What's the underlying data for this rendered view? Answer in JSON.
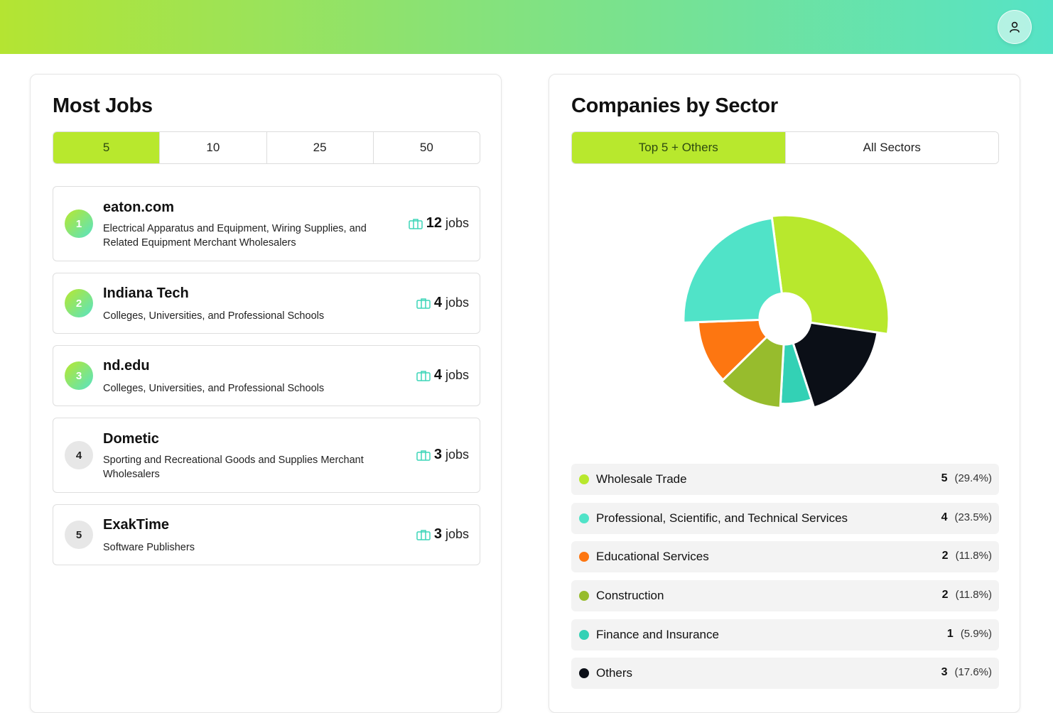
{
  "header": {
    "user_icon": "user-icon"
  },
  "most_jobs": {
    "title": "Most Jobs",
    "tabs": [
      {
        "label": "5",
        "active": true
      },
      {
        "label": "10",
        "active": false
      },
      {
        "label": "25",
        "active": false
      },
      {
        "label": "50",
        "active": false
      }
    ],
    "items": [
      {
        "rank": "1",
        "name": "eaton.com",
        "description": "Electrical Apparatus and Equipment, Wiring Supplies, and Related Equipment Merchant Wholesalers",
        "count": "12",
        "unit": "jobs"
      },
      {
        "rank": "2",
        "name": "Indiana Tech",
        "description": "Colleges, Universities, and Professional Schools",
        "count": "4",
        "unit": "jobs"
      },
      {
        "rank": "3",
        "name": "nd.edu",
        "description": "Colleges, Universities, and Professional Schools",
        "count": "4",
        "unit": "jobs"
      },
      {
        "rank": "4",
        "name": "Dometic",
        "description": "Sporting and Recreational Goods and Supplies Merchant Wholesalers",
        "count": "3",
        "unit": "jobs"
      },
      {
        "rank": "5",
        "name": "ExakTime",
        "description": "Software Publishers",
        "count": "3",
        "unit": "jobs"
      }
    ],
    "count_icon": "briefcase-icon"
  },
  "sector": {
    "title": "Companies by Sector",
    "tabs": [
      {
        "label": "Top 5 + Others",
        "active": true
      },
      {
        "label": "All Sectors",
        "active": false
      }
    ],
    "legend": [
      {
        "label": "Wholesale Trade",
        "count": "5",
        "pct": "(29.4%)",
        "color": "#b8e82d"
      },
      {
        "label": "Professional, Scientific, and Technical Services",
        "count": "4",
        "pct": "(23.5%)",
        "color": "#50e3c8"
      },
      {
        "label": "Educational Services",
        "count": "2",
        "pct": "(11.8%)",
        "color": "#fd7611"
      },
      {
        "label": "Construction",
        "count": "2",
        "pct": "(11.8%)",
        "color": "#97bc2d"
      },
      {
        "label": "Finance and Insurance",
        "count": "1",
        "pct": "(5.9%)",
        "color": "#33d1b5"
      },
      {
        "label": "Others",
        "count": "3",
        "pct": "(17.6%)",
        "color": "#0b0f17"
      }
    ]
  },
  "chart_data": {
    "type": "pie",
    "categories": [
      "Wholesale Trade",
      "Others",
      "Finance and Insurance",
      "Construction",
      "Educational Services",
      "Professional, Scientific, and Technical Services"
    ],
    "values": [
      5,
      3,
      1,
      2,
      2,
      4
    ],
    "colors": [
      "#b8e82d",
      "#0b0f17",
      "#33d1b5",
      "#97bc2d",
      "#fd7611",
      "#50e3c8"
    ],
    "radii": [
      1.0,
      0.9,
      0.82,
      0.86,
      0.84,
      0.98
    ]
  }
}
